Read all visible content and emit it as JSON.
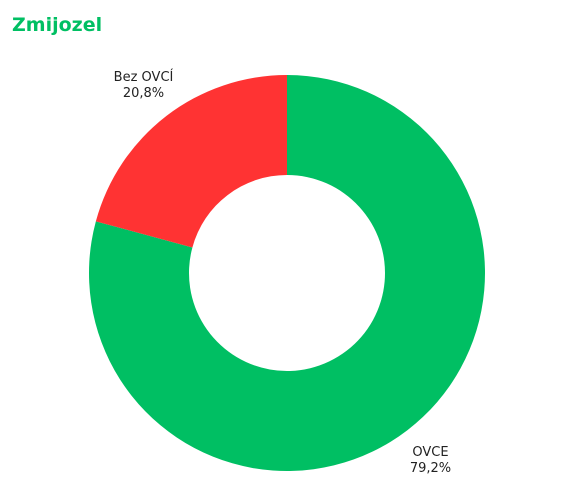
{
  "chart_data": {
    "type": "donut",
    "title": "Zmijozel",
    "categories": [
      "OVCE",
      "Bez OVCÍ"
    ],
    "values": [
      79.2,
      20.8
    ],
    "value_labels": [
      "79,2%",
      "20,8%"
    ],
    "colors": [
      "#00bf63",
      "#ff3333"
    ]
  }
}
